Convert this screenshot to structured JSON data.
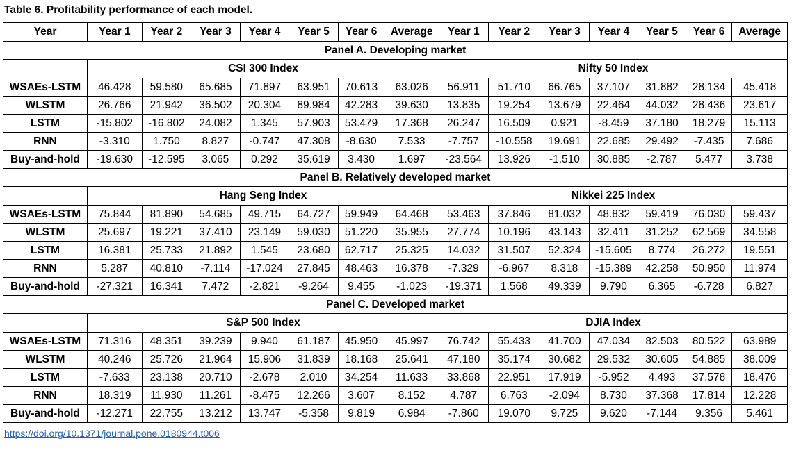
{
  "caption": "Table 6.  Profitability performance of each model.",
  "header": [
    "Year",
    "Year 1",
    "Year 2",
    "Year 3",
    "Year 4",
    "Year 5",
    "Year 6",
    "Average",
    "Year 1",
    "Year 2",
    "Year 3",
    "Year 4",
    "Year 5",
    "Year 6",
    "Average"
  ],
  "panels": [
    {
      "title": "Panel A. Developing market",
      "left_index": "CSI 300 Index",
      "right_index": "Nifty 50 Index",
      "rows": [
        {
          "model": "WSAEs-LSTM",
          "values": [
            "46.428",
            "59.580",
            "65.685",
            "71.897",
            "63.951",
            "70.613",
            "63.026",
            "56.911",
            "51.710",
            "66.765",
            "37.107",
            "31.882",
            "28.134",
            "45.418"
          ]
        },
        {
          "model": "WLSTM",
          "values": [
            "26.766",
            "21.942",
            "36.502",
            "20.304",
            "89.984",
            "42.283",
            "39.630",
            "13.835",
            "19.254",
            "13.679",
            "22.464",
            "44.032",
            "28.436",
            "23.617"
          ]
        },
        {
          "model": "LSTM",
          "values": [
            "-15.802",
            "-16.802",
            "24.082",
            "1.345",
            "57.903",
            "53.479",
            "17.368",
            "26.247",
            "16.509",
            "0.921",
            "-8.459",
            "37.180",
            "18.279",
            "15.113"
          ]
        },
        {
          "model": "RNN",
          "values": [
            "-3.310",
            "1.750",
            "8.827",
            "-0.747",
            "47.308",
            "-8.630",
            "7.533",
            "-7.757",
            "-10.558",
            "19.691",
            "22.685",
            "29.492",
            "-7.435",
            "7.686"
          ]
        },
        {
          "model": "Buy-and-hold",
          "values": [
            "-19.630",
            "-12.595",
            "3.065",
            "0.292",
            "35.619",
            "3.430",
            "1.697",
            "-23.564",
            "13.926",
            "-1.510",
            "30.885",
            "-2.787",
            "5.477",
            "3.738"
          ]
        }
      ]
    },
    {
      "title": "Panel B. Relatively developed market",
      "left_index": "Hang Seng Index",
      "right_index": "Nikkei 225 Index",
      "rows": [
        {
          "model": "WSAEs-LSTM",
          "values": [
            "75.844",
            "81.890",
            "54.685",
            "49.715",
            "64.727",
            "59.949",
            "64.468",
            "53.463",
            "37.846",
            "81.032",
            "48.832",
            "59.419",
            "76.030",
            "59.437"
          ]
        },
        {
          "model": "WLSTM",
          "values": [
            "25.697",
            "19.221",
            "37.410",
            "23.149",
            "59.030",
            "51.220",
            "35.955",
            "27.774",
            "10.196",
            "43.143",
            "32.411",
            "31.252",
            "62.569",
            "34.558"
          ]
        },
        {
          "model": "LSTM",
          "values": [
            "16.381",
            "25.733",
            "21.892",
            "1.545",
            "23.680",
            "62.717",
            "25.325",
            "14.032",
            "31.507",
            "52.324",
            "-15.605",
            "8.774",
            "26.272",
            "19.551"
          ]
        },
        {
          "model": "RNN",
          "values": [
            "5.287",
            "40.810",
            "-7.114",
            "-17.024",
            "27.845",
            "48.463",
            "16.378",
            "-7.329",
            "-6.967",
            "8.318",
            "-15.389",
            "42.258",
            "50.950",
            "11.974"
          ]
        },
        {
          "model": "Buy-and-hold",
          "values": [
            "-27.321",
            "16.341",
            "7.472",
            "-2.821",
            "-9.264",
            "9.455",
            "-1.023",
            "-19.371",
            "1.568",
            "49.339",
            "9.790",
            "6.365",
            "-6.728",
            "6.827"
          ]
        }
      ]
    },
    {
      "title": "Panel C. Developed market",
      "left_index": "S&P 500 Index",
      "right_index": "DJIA Index",
      "rows": [
        {
          "model": "WSAEs-LSTM",
          "values": [
            "71.316",
            "48.351",
            "39.239",
            "9.940",
            "61.187",
            "45.950",
            "45.997",
            "76.742",
            "55.433",
            "41.700",
            "47.034",
            "82.503",
            "80.522",
            "63.989"
          ]
        },
        {
          "model": "WLSTM",
          "values": [
            "40.246",
            "25.726",
            "21.964",
            "15.906",
            "31.839",
            "18.168",
            "25.641",
            "47.180",
            "35.174",
            "30.682",
            "29.532",
            "30.605",
            "54.885",
            "38.009"
          ]
        },
        {
          "model": "LSTM",
          "values": [
            "-7.633",
            "23.138",
            "20.710",
            "-2.678",
            "2.010",
            "34.254",
            "11.633",
            "33.868",
            "22.951",
            "17.919",
            "-5.952",
            "4.493",
            "37.578",
            "18.476"
          ]
        },
        {
          "model": "RNN",
          "values": [
            "18.319",
            "11.930",
            "11.261",
            "-8.475",
            "12.266",
            "3.607",
            "8.152",
            "4.787",
            "6.763",
            "-2.094",
            "8.730",
            "37.368",
            "17.814",
            "12.228"
          ]
        },
        {
          "model": "Buy-and-hold",
          "values": [
            "-12.271",
            "22.755",
            "13.212",
            "13.747",
            "-5.358",
            "9.819",
            "6.984",
            "-7.860",
            "19.070",
            "9.725",
            "9.620",
            "-7.144",
            "9.356",
            "5.461"
          ]
        }
      ]
    }
  ],
  "doi": "https://doi.org/10.1371/journal.pone.0180944.t006"
}
